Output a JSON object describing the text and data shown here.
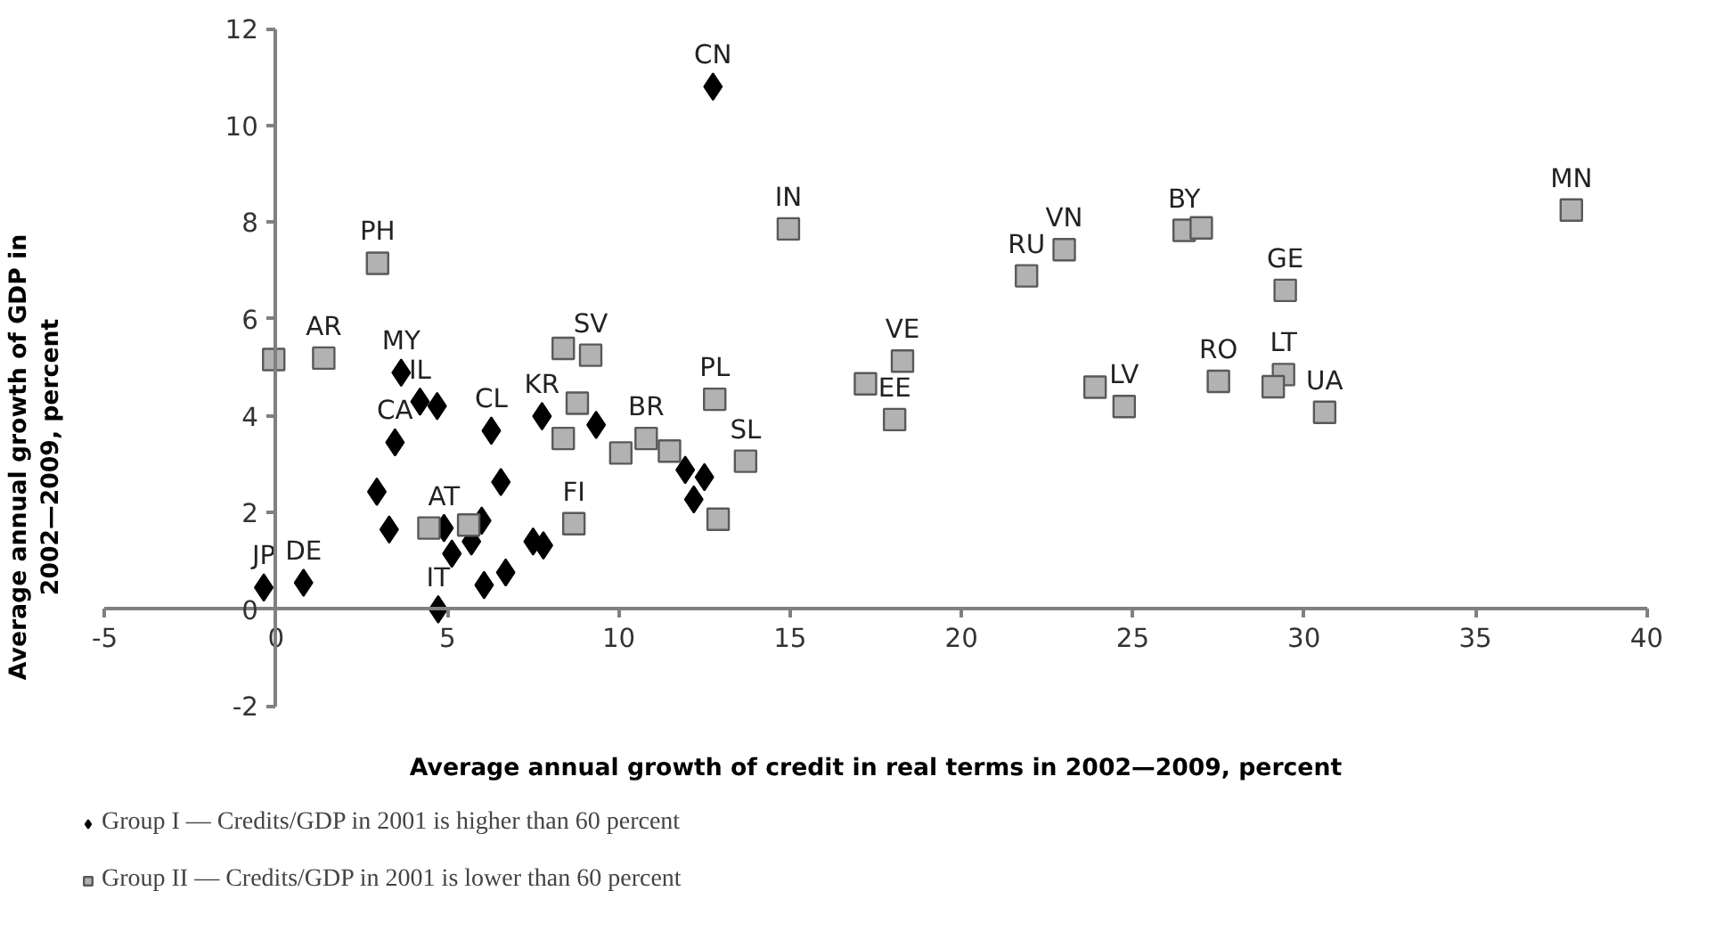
{
  "chart_data": {
    "type": "scatter",
    "xlabel": "Average annual growth of credit in real terms in 2002—2009, percent",
    "ylabel": "Average annual growth of GDP in 2002—2009, percent",
    "xlim": [
      -5,
      40
    ],
    "ylim": [
      -2,
      12
    ],
    "xticks": [
      -5,
      0,
      5,
      10,
      15,
      20,
      25,
      30,
      35,
      40
    ],
    "yticks": [
      -2,
      0,
      2,
      4,
      6,
      8,
      10,
      12
    ],
    "grid": false,
    "legend": "bottom",
    "series": [
      {
        "name": "Group I — Credits/GDP in 2001 is higher than 60 percent",
        "color": "#000000",
        "marker": "diamond",
        "x": [
          -0.36,
          0.8,
          2.94,
          3.3,
          3.47,
          3.65,
          4.2,
          4.7,
          4.9,
          5.13,
          4.73,
          5.7,
          6.0,
          6.07,
          6.7,
          6.28,
          6.56,
          7.5,
          7.8,
          7.76,
          9.34,
          12.75,
          11.94,
          12.5,
          12.19
        ],
        "values": [
          0.45,
          0.55,
          2.43,
          1.65,
          3.45,
          4.89,
          4.29,
          4.2,
          1.68,
          1.15,
          0.0,
          1.4,
          1.83,
          0.5,
          0.76,
          3.69,
          2.63,
          1.4,
          1.32,
          3.99,
          3.81,
          10.8,
          2.88,
          2.73,
          2.27
        ]
      },
      {
        "name": "Group II — Credits/GDP in 2001 is lower than 60 percent",
        "color": "#b2b2b2",
        "marker": "square",
        "x": [
          -0.07,
          1.39,
          2.96,
          4.46,
          5.62,
          8.38,
          9.18,
          8.79,
          8.38,
          8.69,
          10.06,
          10.8,
          11.48,
          12.8,
          12.9,
          13.7,
          14.95,
          17.2,
          18.28,
          18.05,
          21.9,
          23.0,
          23.9,
          24.75,
          26.5,
          27.0,
          27.5,
          29.45,
          29.4,
          29.1,
          30.6,
          37.8
        ],
        "values": [
          5.16,
          5.19,
          7.15,
          1.68,
          1.74,
          5.39,
          5.25,
          4.26,
          3.53,
          1.77,
          3.23,
          3.53,
          3.27,
          4.34,
          1.86,
          3.06,
          7.86,
          4.66,
          5.13,
          3.92,
          6.89,
          7.43,
          4.59,
          4.19,
          7.83,
          7.88,
          4.71,
          6.59,
          4.85,
          4.6,
          4.07,
          8.25
        ]
      }
    ],
    "annotations": [
      {
        "text": "CN",
        "x": 12.75,
        "y": 10.8
      },
      {
        "text": "IN",
        "x": 14.95,
        "y": 7.86
      },
      {
        "text": "VN",
        "x": 23.0,
        "y": 7.43
      },
      {
        "text": "RU",
        "x": 21.9,
        "y": 6.89
      },
      {
        "text": "VE",
        "x": 18.28,
        "y": 5.13
      },
      {
        "text": "EE",
        "x": 18.05,
        "y": 3.92
      },
      {
        "text": "PL",
        "x": 12.8,
        "y": 4.34
      },
      {
        "text": "SL",
        "x": 13.7,
        "y": 3.06
      },
      {
        "text": "BR",
        "x": 10.8,
        "y": 3.53
      },
      {
        "text": "SV",
        "x": 9.18,
        "y": 5.25
      },
      {
        "text": "KR",
        "x": 7.76,
        "y": 3.99
      },
      {
        "text": "FI",
        "x": 8.69,
        "y": 1.77
      },
      {
        "text": "PH",
        "x": 2.96,
        "y": 7.15
      },
      {
        "text": "AR",
        "x": 1.39,
        "y": 5.19
      },
      {
        "text": "MY",
        "x": 3.65,
        "y": 4.89
      },
      {
        "text": "IL",
        "x": 4.2,
        "y": 4.29
      },
      {
        "text": "CA",
        "x": 3.47,
        "y": 3.45
      },
      {
        "text": "CL",
        "x": 6.28,
        "y": 3.69
      },
      {
        "text": "AT",
        "x": 4.9,
        "y": 1.68
      },
      {
        "text": "IT",
        "x": 4.73,
        "y": 0.0
      },
      {
        "text": "JP",
        "x": -0.36,
        "y": 0.45
      },
      {
        "text": "DE",
        "x": 0.8,
        "y": 0.55
      },
      {
        "text": "BY",
        "x": 26.5,
        "y": 7.83
      },
      {
        "text": "GE",
        "x": 29.45,
        "y": 6.59
      },
      {
        "text": "RO",
        "x": 27.5,
        "y": 4.71
      },
      {
        "text": "LT",
        "x": 29.4,
        "y": 4.85
      },
      {
        "text": "UA",
        "x": 30.6,
        "y": 4.07
      },
      {
        "text": "LV",
        "x": 24.75,
        "y": 4.19
      },
      {
        "text": "MN",
        "x": 37.8,
        "y": 8.25
      }
    ]
  }
}
